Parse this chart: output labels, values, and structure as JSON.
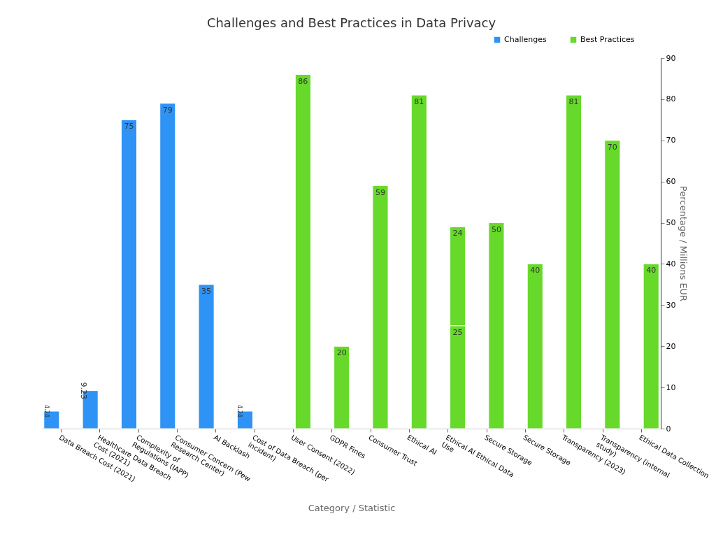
{
  "chart_data": {
    "type": "bar",
    "title": "Challenges and Best Practices in Data Privacy",
    "xlabel": "Category / Statistic",
    "y2label": "Percentage / Millions EUR",
    "categories": [
      "Data Breach Cost (2021)",
      "Healthcare Data Breach Cost (2021)",
      "Complexity of Regulations (IAPP)",
      "Consumer Concern (Pew Research Center)",
      "AI Backlash",
      "Cost of Data Breach (per incident)",
      "User Consent (2022)",
      "GDPR Fines",
      "Consumer Trust",
      "Ethical AI",
      "Ethical AI Ethical Data Use",
      "Secure Storage",
      "Secure Storage",
      "Transparency (2023)",
      "Transparency (internal study)",
      "Ethical Data Collection"
    ],
    "stacked": true,
    "series": [
      {
        "name": "Challenges",
        "color": "#2e93f5",
        "axis": "y2",
        "values": [
          4.24,
          9.23,
          75,
          79,
          35,
          4.24,
          null,
          null,
          null,
          null,
          null,
          null,
          null,
          null,
          null,
          null
        ]
      },
      {
        "name": "Best Practices",
        "color": "#66d92a",
        "axis": "y2",
        "values": [
          null,
          null,
          null,
          null,
          null,
          null,
          86,
          20,
          59,
          81,
          25,
          50,
          40,
          81,
          70,
          40
        ]
      },
      {
        "color": "#66d92a",
        "axis": "y2",
        "values": [
          null,
          null,
          null,
          null,
          null,
          null,
          null,
          null,
          null,
          null,
          24,
          null,
          null,
          null,
          null,
          null
        ]
      }
    ],
    "y2lim": [
      0,
      90
    ],
    "y2ticks": [
      0,
      10,
      20,
      30,
      40,
      50,
      60,
      70,
      80,
      90
    ],
    "data_labels": true,
    "grid": false,
    "legend": "top right"
  }
}
